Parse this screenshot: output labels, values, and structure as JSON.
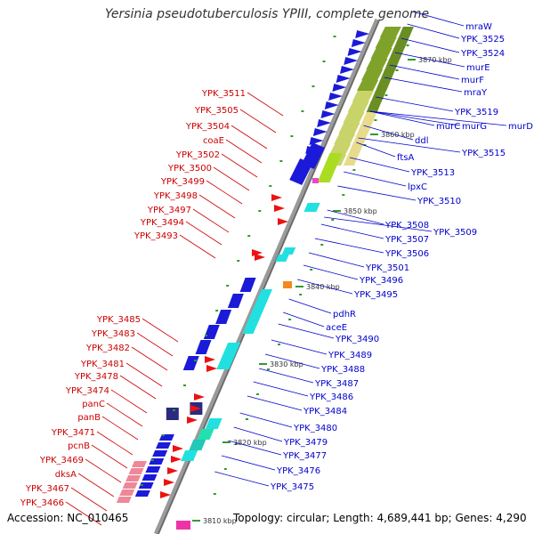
{
  "title": "Yersinia pseudotuberculosis YPIII, complete genome",
  "footer": {
    "accession": "Accession: NC_010465",
    "info": "Topology: circular; Length: 4,689,441 bp; Genes: 4,290"
  },
  "colors": {
    "forward_label": "#0000cc",
    "reverse_label": "#cc0000",
    "backbone": "#888888",
    "tick_dot": "#339933"
  },
  "kbp_ticks": [
    "3870 kbp",
    "3860 kbp",
    "3850 kbp",
    "3840 kbp",
    "3830 kbp",
    "3820 kbp",
    "3810 kbp"
  ],
  "labels_right": [
    "mraW",
    "YPK_3525",
    "YPK_3524",
    "murE",
    "murF",
    "mraY",
    "YPK_3519",
    "murD",
    "murG",
    "murC",
    "ddl",
    "YPK_3515",
    "ftsA",
    "YPK_3513",
    "lpxC",
    "YPK_3510",
    "YPK_3509",
    "YPK_3508",
    "YPK_3507",
    "YPK_3506",
    "YPK_3501",
    "YPK_3496",
    "YPK_3495",
    "pdhR",
    "aceE",
    "YPK_3490",
    "YPK_3489",
    "YPK_3488",
    "YPK_3487",
    "YPK_3486",
    "YPK_3484",
    "YPK_3480",
    "YPK_3479",
    "YPK_3477",
    "YPK_3476",
    "YPK_3475"
  ],
  "labels_left": [
    "YPK_3511",
    "YPK_3505",
    "YPK_3504",
    "coaE",
    "YPK_3502",
    "YPK_3500",
    "YPK_3499",
    "YPK_3498",
    "YPK_3497",
    "YPK_3494",
    "YPK_3493",
    "YPK_3485",
    "YPK_3483",
    "YPK_3482",
    "YPK_3481",
    "YPK_3478",
    "YPK_3474",
    "panC",
    "panB",
    "YPK_3471",
    "pcnB",
    "YPK_3469",
    "dksA",
    "YPK_3467",
    "YPK_3466"
  ]
}
